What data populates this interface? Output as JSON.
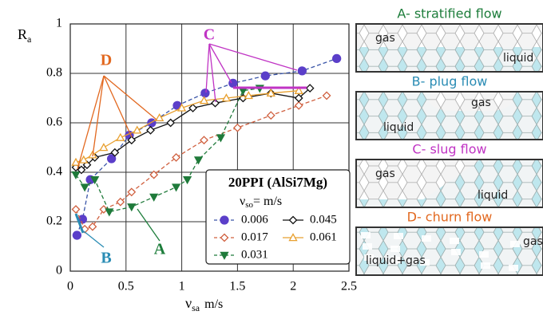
{
  "chart_data": {
    "type": "line",
    "y_label": {
      "symbol": "R",
      "subscript": "a"
    },
    "x_label": {
      "symbol": "ν",
      "subscript": "sa",
      "suffix": "m/s"
    },
    "xlim": [
      0,
      2.5
    ],
    "xticks": [
      0,
      0.5,
      1,
      1.5,
      2,
      2.5
    ],
    "ylim": [
      0,
      1
    ],
    "yticks": [
      0,
      0.2,
      0.4,
      0.6,
      0.8,
      1
    ],
    "grid": true,
    "legend_title": "20PPI (AlSi7Mg)",
    "legend_subtitle": {
      "symbol": "ν",
      "subscript": "so",
      "suffix": "=   m/s"
    },
    "annotations": [
      "A",
      "B",
      "C",
      "D"
    ],
    "series": [
      {
        "name": "0.006",
        "color": "#5b3fc9",
        "line_color": "#3a55a8",
        "marker": "circle",
        "filled": true,
        "line_style": "dashed",
        "x": [
          0.06,
          0.11,
          0.18,
          0.37,
          0.53,
          0.73,
          0.96,
          1.21,
          1.46,
          1.75,
          2.08,
          2.39
        ],
        "values": [
          0.145,
          0.21,
          0.37,
          0.455,
          0.55,
          0.6,
          0.67,
          0.72,
          0.76,
          0.79,
          0.81,
          0.86
        ]
      },
      {
        "name": "0.017",
        "color": "#d0603f",
        "line_color": "#d0603f",
        "marker": "diamond",
        "filled": false,
        "line_style": "dashed",
        "x": [
          0.05,
          0.13,
          0.2,
          0.3,
          0.45,
          0.55,
          0.75,
          0.95,
          1.2,
          1.5,
          1.8,
          2.05,
          2.3
        ],
        "values": [
          0.25,
          0.17,
          0.18,
          0.25,
          0.28,
          0.32,
          0.39,
          0.46,
          0.53,
          0.58,
          0.63,
          0.67,
          0.71
        ]
      },
      {
        "name": "0.031",
        "color": "#1f7a3a",
        "line_color": "#1f7a3a",
        "marker": "triangle-down",
        "filled": true,
        "line_style": "dashed",
        "x": [
          0.05,
          0.13,
          0.22,
          0.35,
          0.55,
          0.75,
          0.95,
          1.05,
          1.15,
          1.35,
          1.55,
          1.7
        ],
        "values": [
          0.39,
          0.34,
          0.37,
          0.24,
          0.26,
          0.3,
          0.34,
          0.37,
          0.45,
          0.54,
          0.73,
          0.74
        ]
      },
      {
        "name": "0.045",
        "color": "#111111",
        "line_color": "#111111",
        "marker": "diamond",
        "filled": false,
        "line_style": "solid",
        "x": [
          0.05,
          0.1,
          0.15,
          0.22,
          0.4,
          0.55,
          0.72,
          0.9,
          1.1,
          1.3,
          1.55,
          1.8,
          2.05,
          2.15
        ],
        "values": [
          0.42,
          0.41,
          0.43,
          0.46,
          0.48,
          0.53,
          0.57,
          0.6,
          0.66,
          0.68,
          0.7,
          0.72,
          0.7,
          0.74
        ]
      },
      {
        "name": "0.061",
        "color": "#e8a030",
        "line_color": "#e8a030",
        "marker": "triangle-up",
        "filled": false,
        "line_style": "solid",
        "x": [
          0.05,
          0.12,
          0.2,
          0.3,
          0.45,
          0.6,
          0.8,
          1.0,
          1.2,
          1.4,
          1.6,
          1.8,
          2.05
        ],
        "values": [
          0.44,
          0.45,
          0.47,
          0.5,
          0.54,
          0.57,
          0.62,
          0.66,
          0.69,
          0.7,
          0.71,
          0.72,
          0.73
        ]
      }
    ]
  },
  "flow_panels": [
    {
      "title": "A- stratified flow",
      "color": "#1d7d3b",
      "labels": [
        "gas",
        "liquid"
      ]
    },
    {
      "title": "B- plug flow",
      "color": "#2a8cb4",
      "labels": [
        "gas",
        "liquid"
      ]
    },
    {
      "title": "C- slug flow",
      "color": "#c034c4",
      "labels": [
        "gas",
        "liquid"
      ]
    },
    {
      "title": "D- churn flow",
      "color": "#e2681f",
      "labels": [
        "gas",
        "liquid+gas"
      ]
    }
  ]
}
